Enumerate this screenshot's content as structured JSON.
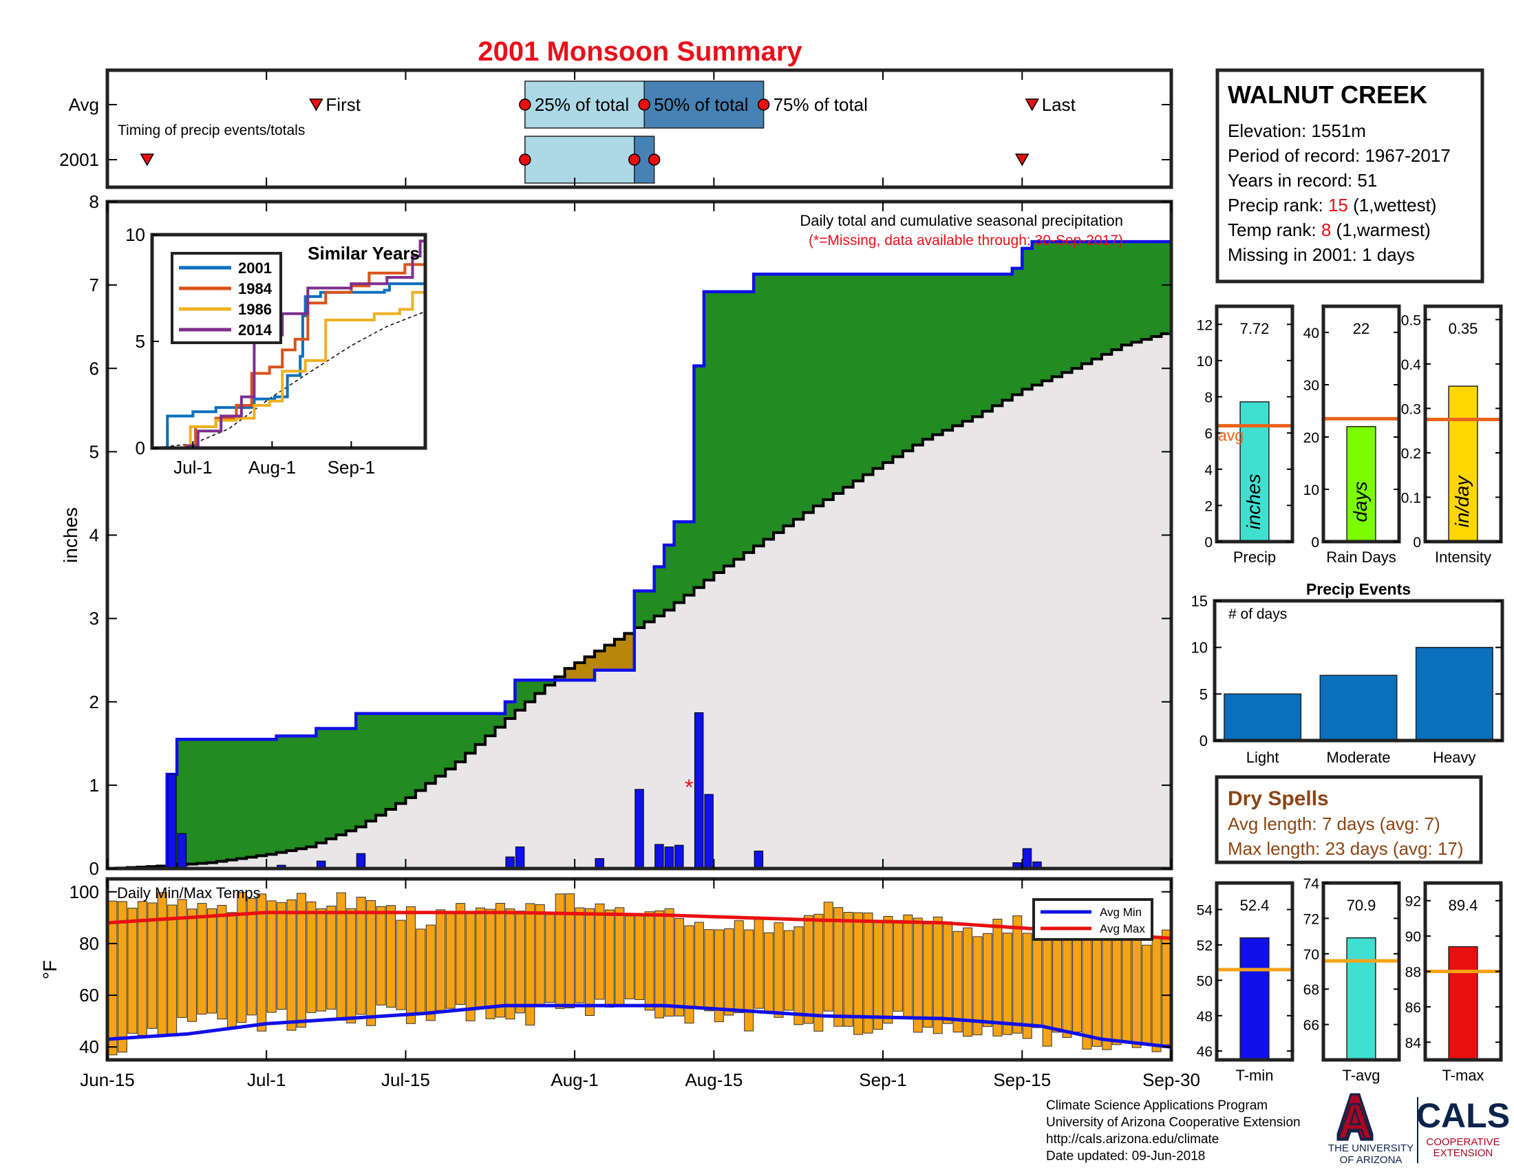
{
  "title": "2001 Monsoon Summary",
  "timing": {
    "row_labels": [
      "Avg",
      "2001"
    ],
    "caption": "Timing of precip events/totals",
    "labels": {
      "first": "First",
      "p25": "25% of total",
      "p50": "50% of total",
      "p75": "75% of total",
      "last": "Last"
    },
    "avg": {
      "first": "Jul-6",
      "p25": "Jul-27",
      "p50": "Aug-8",
      "p75": "Aug-20",
      "last": "Sep-16"
    },
    "year": {
      "first": "Jun-19",
      "p25": "Jul-27",
      "p50": "Aug-7",
      "p75": "Aug-9",
      "last": "Sep-15"
    }
  },
  "station": {
    "name": "WALNUT CREEK",
    "lines": [
      {
        "label": "Elevation: ",
        "value": "1551m",
        "suffix": "",
        "highlight": false
      },
      {
        "label": "Period of record: ",
        "value": "1967-2017",
        "suffix": "",
        "highlight": false
      },
      {
        "label": "Years in record: ",
        "value": "51",
        "suffix": "",
        "highlight": false
      },
      {
        "label": "Precip rank: ",
        "value": "15",
        "suffix": " (1,wettest)",
        "highlight": true
      },
      {
        "label": "Temp rank: ",
        "value": "8",
        "suffix": " (1,warmest)",
        "highlight": true
      },
      {
        "label": "Missing in 2001: ",
        "value": "1 days",
        "suffix": "",
        "highlight": false
      }
    ]
  },
  "colors": {
    "title": "#e8101a",
    "cumulative_line": "#1010e8",
    "above_avg_fill": "#228b22",
    "below_avg_fill": "#b8860b",
    "avg_fill": "#e8e6e6",
    "daily_bar": "#1010e8",
    "temp_bar": "#f5a316",
    "avg_max": "#e81010",
    "avg_min": "#1010e8",
    "precip_bar": "#40e0d0",
    "raindays_bar": "#7cfc00",
    "intensity_bar": "#ffd700",
    "avg_line_precip": "#e8631b",
    "events_bar": "#0a6fbd",
    "dry_text": "#8b4513",
    "tmin_bar": "#1010e8",
    "tavg_bar": "#40e0d0",
    "tmax_bar": "#e81010",
    "temp_avg_line": "#f5a316",
    "timing_light": "#add8e6",
    "timing_dark": "#4682b4",
    "marker": "#e81010",
    "s2001": "#0a6fbd",
    "s1984": "#d95319",
    "s1986": "#edb120",
    "s2014": "#7e2f8e"
  },
  "chart_data": [
    {
      "type": "line",
      "name": "main-cumulative-precip",
      "title": "Daily total and cumulative seasonal precipitation",
      "subtitle": "(*=Missing, data available through: 30-Sep-2017)",
      "ylabel": "inches",
      "ylim": [
        0,
        8
      ],
      "yticks": [
        0,
        1,
        2,
        3,
        4,
        5,
        6,
        7,
        8
      ],
      "xlim": [
        "Jun-15",
        "Sep-30"
      ],
      "xticks": [
        "Jun-15",
        "Jul-1",
        "Jul-15",
        "Aug-1",
        "Aug-15",
        "Sep-1",
        "Sep-15",
        "Sep-30"
      ],
      "missing_marker": {
        "date": "Aug-12",
        "value": 1.0,
        "symbol": "*"
      },
      "daily_precip": [
        {
          "date": "Jun-21",
          "value": 1.13
        },
        {
          "date": "Jun-22",
          "value": 0.42
        },
        {
          "date": "Jul-2",
          "value": 0.04
        },
        {
          "date": "Jul-6",
          "value": 0.09
        },
        {
          "date": "Jul-10",
          "value": 0.18
        },
        {
          "date": "Jul-25",
          "value": 0.14
        },
        {
          "date": "Jul-26",
          "value": 0.26
        },
        {
          "date": "Aug-3",
          "value": 0.12
        },
        {
          "date": "Aug-7",
          "value": 0.95
        },
        {
          "date": "Aug-9",
          "value": 0.29
        },
        {
          "date": "Aug-10",
          "value": 0.26
        },
        {
          "date": "Aug-11",
          "value": 0.28
        },
        {
          "date": "Aug-13",
          "value": 1.87
        },
        {
          "date": "Aug-14",
          "value": 0.89
        },
        {
          "date": "Aug-19",
          "value": 0.21
        },
        {
          "date": "Sep-14",
          "value": 0.07
        },
        {
          "date": "Sep-15",
          "value": 0.24
        },
        {
          "date": "Sep-16",
          "value": 0.08
        }
      ],
      "avg_cumulative": [
        {
          "date": "Jun-15",
          "value": 0.0
        },
        {
          "date": "Jun-20",
          "value": 0.03
        },
        {
          "date": "Jun-25",
          "value": 0.07
        },
        {
          "date": "Jul-1",
          "value": 0.17
        },
        {
          "date": "Jul-5",
          "value": 0.26
        },
        {
          "date": "Jul-10",
          "value": 0.5
        },
        {
          "date": "Jul-15",
          "value": 0.85
        },
        {
          "date": "Jul-20",
          "value": 1.28
        },
        {
          "date": "Jul-25",
          "value": 1.8
        },
        {
          "date": "Jul-31",
          "value": 2.4
        },
        {
          "date": "Aug-5",
          "value": 2.75
        },
        {
          "date": "Aug-10",
          "value": 3.1
        },
        {
          "date": "Aug-15",
          "value": 3.55
        },
        {
          "date": "Aug-20",
          "value": 3.95
        },
        {
          "date": "Aug-25",
          "value": 4.35
        },
        {
          "date": "Aug-31",
          "value": 4.8
        },
        {
          "date": "Sep-5",
          "value": 5.15
        },
        {
          "date": "Sep-10",
          "value": 5.42
        },
        {
          "date": "Sep-15",
          "value": 5.75
        },
        {
          "date": "Sep-20",
          "value": 6.0
        },
        {
          "date": "Sep-25",
          "value": 6.28
        },
        {
          "date": "Sep-30",
          "value": 6.45
        }
      ]
    },
    {
      "type": "line",
      "name": "similar-years-inset",
      "title": "Similar Years",
      "ylim": [
        0,
        10
      ],
      "yticks": [
        0,
        5,
        10
      ],
      "xlim": [
        "Jun-15",
        "Sep-30"
      ],
      "xticks": [
        "Jul-1",
        "Aug-1",
        "Sep-1"
      ],
      "series": [
        {
          "name": "2001",
          "color_key": "s2001",
          "points": [
            [
              "Jun-15",
              0
            ],
            [
              "Jun-20",
              0
            ],
            [
              "Jun-21",
              1.5
            ],
            [
              "Jul-1",
              1.7
            ],
            [
              "Jul-10",
              1.9
            ],
            [
              "Jul-25",
              2.3
            ],
            [
              "Aug-2",
              2.4
            ],
            [
              "Aug-7",
              3.4
            ],
            [
              "Aug-12",
              4.3
            ],
            [
              "Aug-13",
              6.2
            ],
            [
              "Aug-14",
              7.1
            ],
            [
              "Aug-20",
              7.3
            ],
            [
              "Sep-14",
              7.4
            ],
            [
              "Sep-16",
              7.7
            ],
            [
              "Sep-30",
              7.72
            ]
          ]
        },
        {
          "name": "1984",
          "color_key": "s1984",
          "points": [
            [
              "Jun-15",
              0
            ],
            [
              "Jun-28",
              0.1
            ],
            [
              "Jul-2",
              1.0
            ],
            [
              "Jul-10",
              1.4
            ],
            [
              "Jul-18",
              2.0
            ],
            [
              "Jul-24",
              3.5
            ],
            [
              "Jul-31",
              3.8
            ],
            [
              "Aug-5",
              4.6
            ],
            [
              "Aug-10",
              5.1
            ],
            [
              "Aug-15",
              6.8
            ],
            [
              "Aug-22",
              7.3
            ],
            [
              "Sep-1",
              7.6
            ],
            [
              "Sep-8",
              8.2
            ],
            [
              "Sep-15",
              8.2
            ],
            [
              "Sep-22",
              8.6
            ],
            [
              "Sep-30",
              9.1
            ]
          ]
        },
        {
          "name": "1986",
          "color_key": "s1986",
          "points": [
            [
              "Jun-15",
              0
            ],
            [
              "Jun-27",
              0
            ],
            [
              "Jun-30",
              1.0
            ],
            [
              "Jul-10",
              1.3
            ],
            [
              "Jul-18",
              1.4
            ],
            [
              "Jul-25",
              2.0
            ],
            [
              "Jul-31",
              2.2
            ],
            [
              "Aug-5",
              3.6
            ],
            [
              "Aug-14",
              4.1
            ],
            [
              "Aug-22",
              6.0
            ],
            [
              "Sep-10",
              6.3
            ],
            [
              "Sep-20",
              6.5
            ],
            [
              "Sep-25",
              7.3
            ],
            [
              "Sep-30",
              7.8
            ]
          ]
        },
        {
          "name": "2014",
          "color_key": "s2014",
          "points": [
            [
              "Jun-15",
              0
            ],
            [
              "Jun-29",
              0.1
            ],
            [
              "Jul-3",
              0.8
            ],
            [
              "Jul-12",
              1.5
            ],
            [
              "Jul-20",
              2.4
            ],
            [
              "Jul-25",
              5.0
            ],
            [
              "Aug-1",
              5.3
            ],
            [
              "Aug-5",
              6.3
            ],
            [
              "Aug-15",
              7.5
            ],
            [
              "Sep-1",
              7.7
            ],
            [
              "Sep-15",
              8.0
            ],
            [
              "Sep-25",
              9.0
            ],
            [
              "Sep-28",
              9.7
            ],
            [
              "Sep-30",
              9.7
            ]
          ]
        }
      ],
      "avg_dashed": [
        [
          "Jun-15",
          0
        ],
        [
          "Jul-1",
          0.2
        ],
        [
          "Jul-15",
          0.9
        ],
        [
          "Aug-1",
          2.4
        ],
        [
          "Aug-15",
          3.5
        ],
        [
          "Sep-1",
          4.8
        ],
        [
          "Sep-15",
          5.7
        ],
        [
          "Sep-30",
          6.4
        ]
      ]
    },
    {
      "type": "bar",
      "name": "daily-temps",
      "title": "Daily Min/Max Temps",
      "ylabel": "°F",
      "ylim": [
        35,
        105
      ],
      "yticks": [
        40,
        60,
        80,
        100
      ],
      "xlim": [
        "Jun-15",
        "Sep-30"
      ],
      "legend": [
        "Avg Min",
        "Avg Max"
      ],
      "legend_placement": "top-right",
      "max_anchors": [
        [
          0,
          95
        ],
        [
          3,
          98
        ],
        [
          6,
          97
        ],
        [
          10,
          93
        ],
        [
          14,
          98
        ],
        [
          17,
          99
        ],
        [
          20,
          97
        ],
        [
          24,
          96
        ],
        [
          28,
          94
        ],
        [
          31,
          89
        ],
        [
          35,
          93
        ],
        [
          39,
          92
        ],
        [
          42,
          95
        ],
        [
          46,
          96
        ],
        [
          50,
          94
        ],
        [
          53,
          92
        ],
        [
          56,
          91
        ],
        [
          60,
          89
        ],
        [
          64,
          88
        ],
        [
          67,
          88
        ],
        [
          71,
          91
        ],
        [
          74,
          94
        ],
        [
          78,
          90
        ],
        [
          81,
          87
        ],
        [
          84,
          87
        ],
        [
          88,
          86
        ],
        [
          91,
          87
        ],
        [
          94,
          86
        ],
        [
          97,
          86
        ],
        [
          100,
          84
        ],
        [
          103,
          83
        ],
        [
          107,
          84
        ]
      ],
      "min_anchors": [
        [
          0,
          40
        ],
        [
          3,
          44
        ],
        [
          6,
          48
        ],
        [
          10,
          52
        ],
        [
          14,
          51
        ],
        [
          17,
          50
        ],
        [
          20,
          51
        ],
        [
          24,
          52
        ],
        [
          28,
          52
        ],
        [
          31,
          51
        ],
        [
          35,
          54
        ],
        [
          39,
          56
        ],
        [
          42,
          52
        ],
        [
          46,
          57
        ],
        [
          50,
          55
        ],
        [
          53,
          54
        ],
        [
          56,
          53
        ],
        [
          60,
          53
        ],
        [
          64,
          51
        ],
        [
          67,
          50
        ],
        [
          71,
          50
        ],
        [
          74,
          49
        ],
        [
          78,
          51
        ],
        [
          81,
          50
        ],
        [
          84,
          49
        ],
        [
          88,
          47
        ],
        [
          91,
          46
        ],
        [
          94,
          44
        ],
        [
          97,
          44
        ],
        [
          100,
          42
        ],
        [
          103,
          42
        ],
        [
          107,
          43
        ]
      ],
      "avg_max": [
        [
          0,
          88
        ],
        [
          8,
          90
        ],
        [
          16,
          92
        ],
        [
          24,
          92
        ],
        [
          40,
          92
        ],
        [
          56,
          91
        ],
        [
          72,
          89
        ],
        [
          84,
          88
        ],
        [
          96,
          85
        ],
        [
          107,
          82
        ]
      ],
      "avg_min": [
        [
          0,
          43
        ],
        [
          8,
          45
        ],
        [
          16,
          49
        ],
        [
          24,
          51
        ],
        [
          32,
          53
        ],
        [
          40,
          56
        ],
        [
          56,
          56
        ],
        [
          64,
          54
        ],
        [
          72,
          52
        ],
        [
          84,
          51
        ],
        [
          94,
          48
        ],
        [
          100,
          43
        ],
        [
          107,
          40
        ]
      ]
    },
    {
      "type": "bar",
      "name": "season-stats",
      "panels": [
        {
          "key": "precip",
          "label": "Precip",
          "unit": "inches",
          "value": 7.72,
          "value_label": "7.72",
          "avg": 6.4,
          "avg_label": "avg",
          "ylim": [
            0,
            13
          ],
          "yticks": [
            0,
            2,
            4,
            6,
            8,
            10,
            12
          ],
          "color_key": "precip_bar"
        },
        {
          "key": "raindays",
          "label": "Rain Days",
          "unit": "days",
          "value": 22,
          "value_label": "22",
          "avg": 23.5,
          "ylim": [
            0,
            45
          ],
          "yticks": [
            0,
            10,
            20,
            30,
            40
          ],
          "color_key": "raindays_bar"
        },
        {
          "key": "intensity",
          "label": "Intensity",
          "unit": "in/day",
          "value": 0.35,
          "value_label": "0.35",
          "avg": 0.275,
          "ylim": [
            0,
            0.53
          ],
          "yticks": [
            0,
            0.1,
            0.2,
            0.3,
            0.4,
            0.5
          ],
          "color_key": "intensity_bar"
        }
      ]
    },
    {
      "type": "bar",
      "name": "precip-events",
      "title": "Precip Events",
      "ylabel": "# of days",
      "ylim": [
        0,
        15
      ],
      "yticks": [
        0,
        5,
        10,
        15
      ],
      "categories": [
        "Light",
        "Moderate",
        "Heavy"
      ],
      "values": [
        5,
        7,
        10
      ]
    },
    {
      "type": "bar",
      "name": "season-temps",
      "panels": [
        {
          "key": "tmin",
          "label": "T-min",
          "value": 52.4,
          "value_label": "52.4",
          "avg": 50.6,
          "ylim": [
            45.5,
            55.5
          ],
          "yticks": [
            46,
            48,
            50,
            52,
            54
          ],
          "color_key": "tmin_bar"
        },
        {
          "key": "tavg",
          "label": "T-avg",
          "value": 70.9,
          "value_label": "70.9",
          "avg": 69.6,
          "ylim": [
            64,
            74
          ],
          "yticks": [
            66,
            68,
            70,
            72,
            74
          ],
          "color_key": "tavg_bar"
        },
        {
          "key": "tmax",
          "label": "T-max",
          "value": 89.4,
          "value_label": "89.4",
          "avg": 88,
          "ylim": [
            83,
            93
          ],
          "yticks": [
            84,
            86,
            88,
            90,
            92
          ],
          "color_key": "tmax_bar"
        }
      ]
    }
  ],
  "dry_spells": {
    "title": "Dry Spells",
    "avg_length": "Avg length: 7 days (avg: 7)",
    "max_length": "Max length: 23 days (avg: 17)"
  },
  "footer": {
    "lines": [
      "Climate Science Applications Program",
      "University of Arizona Cooperative Extension",
      "http://cals.arizona.edu/climate",
      " Date updated: 09-Jun-2018"
    ]
  },
  "logo": {
    "letter": "A",
    "univ_line1": "THE UNIVERSITY",
    "univ_line2": "OF ARIZONA",
    "cals": "CALS",
    "coop_line1": "COOPERATIVE",
    "coop_line2": "EXTENSION"
  }
}
